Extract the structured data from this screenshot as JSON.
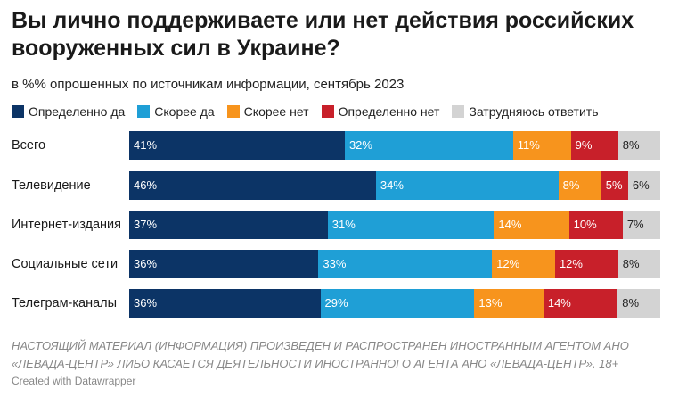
{
  "header": {
    "title": "Вы лично поддерживаете или нет действия российских вооруженных сил в Украине?",
    "subtitle": "в %% опрошенных по источникам информации, сентябрь 2023"
  },
  "chart_data": {
    "type": "bar",
    "orientation": "horizontal-stacked-100",
    "categories": [
      "Всего",
      "Телевидение",
      "Интернет-издания",
      "Социальные сети",
      "Телеграм-каналы"
    ],
    "series": [
      {
        "name": "Определенно да",
        "color": "#0c3466",
        "values": [
          41,
          46,
          37,
          36,
          36
        ]
      },
      {
        "name": "Скорее да",
        "color": "#1f9fd6",
        "values": [
          32,
          34,
          31,
          33,
          29
        ]
      },
      {
        "name": "Скорее нет",
        "color": "#f7941d",
        "values": [
          11,
          8,
          14,
          12,
          13
        ]
      },
      {
        "name": "Определенно нет",
        "color": "#c8202a",
        "values": [
          9,
          5,
          10,
          12,
          14
        ]
      },
      {
        "name": "Затрудняюсь ответить",
        "color": "#d3d3d3",
        "values": [
          8,
          6,
          7,
          8,
          8
        ]
      }
    ],
    "legend_position": "top",
    "grid": false
  },
  "footer": {
    "note_line1": "НАСТОЯЩИЙ МАТЕРИАЛ (ИНФОРМАЦИЯ) ПРОИЗВЕДЕН И РАСПРОСТРАНЕН ИНОСТРАННЫМ АГЕНТОМ АНО",
    "note_line2": "«ЛЕВАДА-ЦЕНТР» ЛИБО КАСАЕТСЯ ДЕЯТЕЛЬНОСТИ ИНОСТРАННОГО АГЕНТА АНО «ЛЕВАДА-ЦЕНТР». 18+",
    "credit": "Created with Datawrapper"
  }
}
